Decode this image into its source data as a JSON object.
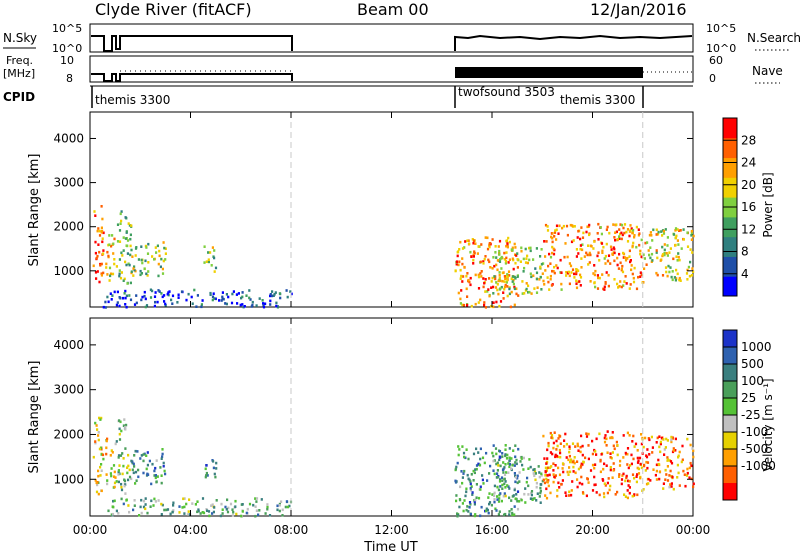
{
  "header": {
    "station": "Clyde River (fitACF)",
    "beam": "Beam 00",
    "date": "12/Jan/2016"
  },
  "panels": {
    "nsky": {
      "label": "N.Sky",
      "tick_hi": "10^5",
      "tick_lo": "10^0"
    },
    "nsearch": {
      "label": "N.Search",
      "tick_hi": "10^5",
      "tick_lo": "10^0"
    },
    "freq": {
      "label_top": "Freq.",
      "label_unit": "[MHz]",
      "tick_hi": "10",
      "tick_lo": "8"
    },
    "nave": {
      "label": "Nave",
      "tick_hi": "60",
      "tick_lo": "0"
    },
    "cpid": {
      "label": "CPID",
      "entries": [
        {
          "name": "themis 3300",
          "start_hour": 0.0
        },
        {
          "name": "twofsound 3503",
          "start_hour": 14.5
        },
        {
          "name": "themis 3300",
          "start_hour": 22.0
        }
      ]
    }
  },
  "chart_data": [
    {
      "type": "heatmap",
      "name": "power",
      "xlabel": "",
      "ylabel": "Slant Range [km]",
      "x_tick_labels": [
        "00:00",
        "04:00",
        "08:00",
        "12:00",
        "16:00",
        "20:00",
        "00:00"
      ],
      "x_ticks_hours": [
        0,
        4,
        8,
        12,
        16,
        20,
        24
      ],
      "xlim_hours": [
        0,
        24
      ],
      "y_ticks": [
        1000,
        2000,
        3000,
        4000
      ],
      "ylim": [
        180,
        4600
      ],
      "vlines_hours": [
        8,
        22
      ],
      "colorbar": {
        "label": "Power [dB]",
        "ticks": [
          4,
          8,
          12,
          16,
          20,
          24,
          28
        ],
        "range": [
          0,
          32
        ],
        "colors": [
          "#0000ff",
          "#1f4fa8",
          "#2f7f7f",
          "#3f9f5f",
          "#7fcf3f",
          "#f0d000",
          "#ff9f00",
          "#ff5f00",
          "#ff0000"
        ]
      },
      "scatter_blobs": [
        {
          "h0": 0.1,
          "h1": 0.5,
          "r0": 600,
          "r1": 2500,
          "level": 0.85
        },
        {
          "h0": 0.6,
          "h1": 1.0,
          "r0": 800,
          "r1": 2000,
          "level": 0.6
        },
        {
          "h0": 1.0,
          "h1": 1.6,
          "r0": 700,
          "r1": 2400,
          "level": 0.45
        },
        {
          "h0": 1.6,
          "h1": 3.0,
          "r0": 900,
          "r1": 1700,
          "level": 0.5
        },
        {
          "h0": 4.5,
          "h1": 5.0,
          "r0": 1000,
          "r1": 1600,
          "level": 0.55
        },
        {
          "h0": 0.5,
          "h1": 8.0,
          "r0": 200,
          "r1": 600,
          "level": 0.15
        },
        {
          "h0": 14.5,
          "h1": 17.0,
          "r0": 200,
          "r1": 1800,
          "level": 0.75
        },
        {
          "h0": 16.0,
          "h1": 18.0,
          "r0": 500,
          "r1": 1600,
          "level": 0.55
        },
        {
          "h0": 18.0,
          "h1": 22.0,
          "r0": 600,
          "r1": 2100,
          "level": 0.75
        },
        {
          "h0": 22.0,
          "h1": 24.0,
          "r0": 800,
          "r1": 2000,
          "level": 0.6
        }
      ]
    },
    {
      "type": "heatmap",
      "name": "velocity",
      "xlabel": "Time UT",
      "ylabel": "Slant Range [km]",
      "x_tick_labels": [
        "00:00",
        "04:00",
        "08:00",
        "12:00",
        "16:00",
        "20:00",
        "00:00"
      ],
      "x_ticks_hours": [
        0,
        4,
        8,
        12,
        16,
        20,
        24
      ],
      "xlim_hours": [
        0,
        24
      ],
      "y_ticks": [
        1000,
        2000,
        3000,
        4000
      ],
      "ylim": [
        180,
        4600
      ],
      "vlines_hours": [
        8,
        22
      ],
      "colorbar": {
        "label": "Velocity [m s⁻¹]",
        "ticks": [
          "1000",
          "500",
          "100",
          "25",
          "-25",
          "-100",
          "-500",
          "-1000"
        ],
        "colors": [
          "#1c33c8",
          "#2f62b0",
          "#3a7f7f",
          "#4a9f5a",
          "#55c236",
          "#c0c0c0",
          "#e6d000",
          "#ff9f00",
          "#ff5f00",
          "#ff0000"
        ]
      },
      "scatter_blobs": [
        {
          "h0": 0.1,
          "h1": 0.5,
          "r0": 600,
          "r1": 2500,
          "level": 0.35
        },
        {
          "h0": 0.6,
          "h1": 1.0,
          "r0": 800,
          "r1": 2000,
          "level": 0.4
        },
        {
          "h0": 1.0,
          "h1": 1.6,
          "r0": 700,
          "r1": 2400,
          "level": 0.55
        },
        {
          "h0": 1.6,
          "h1": 3.0,
          "r0": 900,
          "r1": 1700,
          "level": 0.7
        },
        {
          "h0": 4.5,
          "h1": 5.0,
          "r0": 1000,
          "r1": 1600,
          "level": 0.7
        },
        {
          "h0": 0.5,
          "h1": 8.0,
          "r0": 200,
          "r1": 600,
          "level": 0.6
        },
        {
          "h0": 14.5,
          "h1": 17.0,
          "r0": 200,
          "r1": 1800,
          "level": 0.7
        },
        {
          "h0": 16.0,
          "h1": 18.0,
          "r0": 500,
          "r1": 1600,
          "level": 0.6
        },
        {
          "h0": 18.0,
          "h1": 22.0,
          "r0": 600,
          "r1": 2100,
          "level": 0.15
        },
        {
          "h0": 22.0,
          "h1": 24.0,
          "r0": 800,
          "r1": 2000,
          "level": 0.2
        }
      ]
    }
  ]
}
